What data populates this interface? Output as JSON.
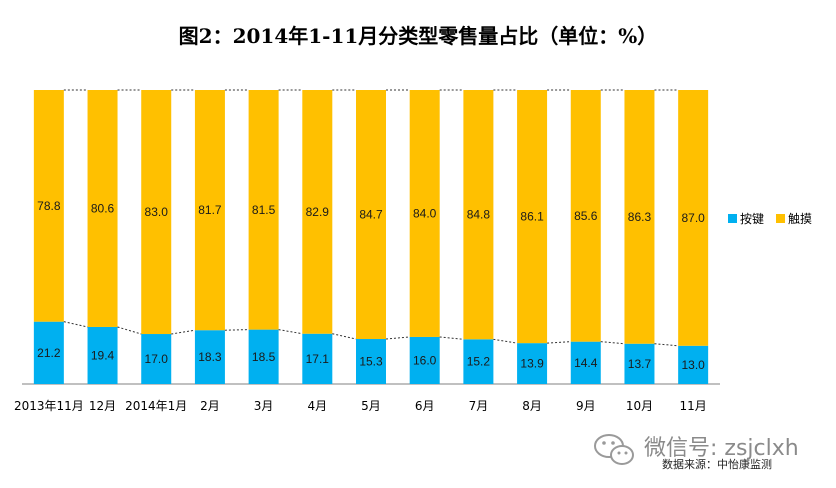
{
  "chart_data": {
    "type": "bar",
    "stacked": true,
    "title": "图2：2014年1-11月分类型零售量占比（单位：%）",
    "categories": [
      "2013年11月",
      "12月",
      "2014年1月",
      "2月",
      "3月",
      "4月",
      "5月",
      "6月",
      "7月",
      "8月",
      "9月",
      "10月",
      "11月"
    ],
    "series": [
      {
        "name": "按键",
        "color": "#00B0F0",
        "values": [
          21.2,
          19.4,
          17.0,
          18.3,
          18.5,
          17.1,
          15.3,
          16.0,
          15.2,
          13.9,
          14.4,
          13.7,
          13.0
        ],
        "labels": [
          "21.2",
          "19.4",
          "17.0",
          "18.3",
          "18.5",
          "17.1",
          "15.3",
          "16.0",
          "15.2",
          "13.9",
          "14.4",
          "13.7",
          "13.0"
        ]
      },
      {
        "name": "触摸",
        "color": "#FFC000",
        "values": [
          78.8,
          80.6,
          83.0,
          81.7,
          81.5,
          82.9,
          84.7,
          84.0,
          84.8,
          86.1,
          85.6,
          86.3,
          87.0
        ],
        "labels": [
          "78.8",
          "80.6",
          "83.0",
          "81.7",
          "81.5",
          "82.9",
          "84.7",
          "84.0",
          "84.8",
          "86.1",
          "85.6",
          "86.3",
          "87.0"
        ]
      }
    ],
    "ylim": [
      0,
      100
    ],
    "legend_position": "right",
    "series_lines": "dashed"
  },
  "watermark": {
    "wechat": "微信号: zsjclxh",
    "source": "数据来源：中怡康监测"
  }
}
